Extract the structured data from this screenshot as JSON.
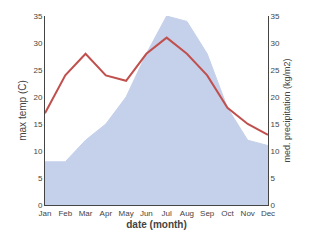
{
  "chart_data": {
    "type": "line",
    "xlabel": "date (month)",
    "ylabel": "max temp (C)",
    "y2label": "med. precipitation (kg/m2)",
    "categories": [
      "Jan",
      "Feb",
      "Mar",
      "Apr",
      "May",
      "Jun",
      "Jul",
      "Aug",
      "Sep",
      "Oct",
      "Nov",
      "Dec"
    ],
    "series": [
      {
        "type": "area",
        "color": "#c5d0ea",
        "axis": "y2",
        "values": [
          8,
          8,
          12,
          15,
          20,
          28,
          35,
          34,
          28,
          18,
          12,
          11
        ]
      },
      {
        "type": "line",
        "color": "#c0504d",
        "values": [
          17,
          24,
          28,
          24,
          23,
          28,
          31,
          28,
          24,
          18,
          15,
          13
        ]
      }
    ],
    "ylim": [
      0,
      35
    ],
    "yticks": [
      0,
      5,
      10,
      15,
      20,
      25,
      30,
      35
    ],
    "y2lim": [
      0,
      35
    ],
    "y2ticks": [
      0,
      5,
      10,
      15,
      20,
      25,
      30,
      35
    ],
    "grid": false
  }
}
